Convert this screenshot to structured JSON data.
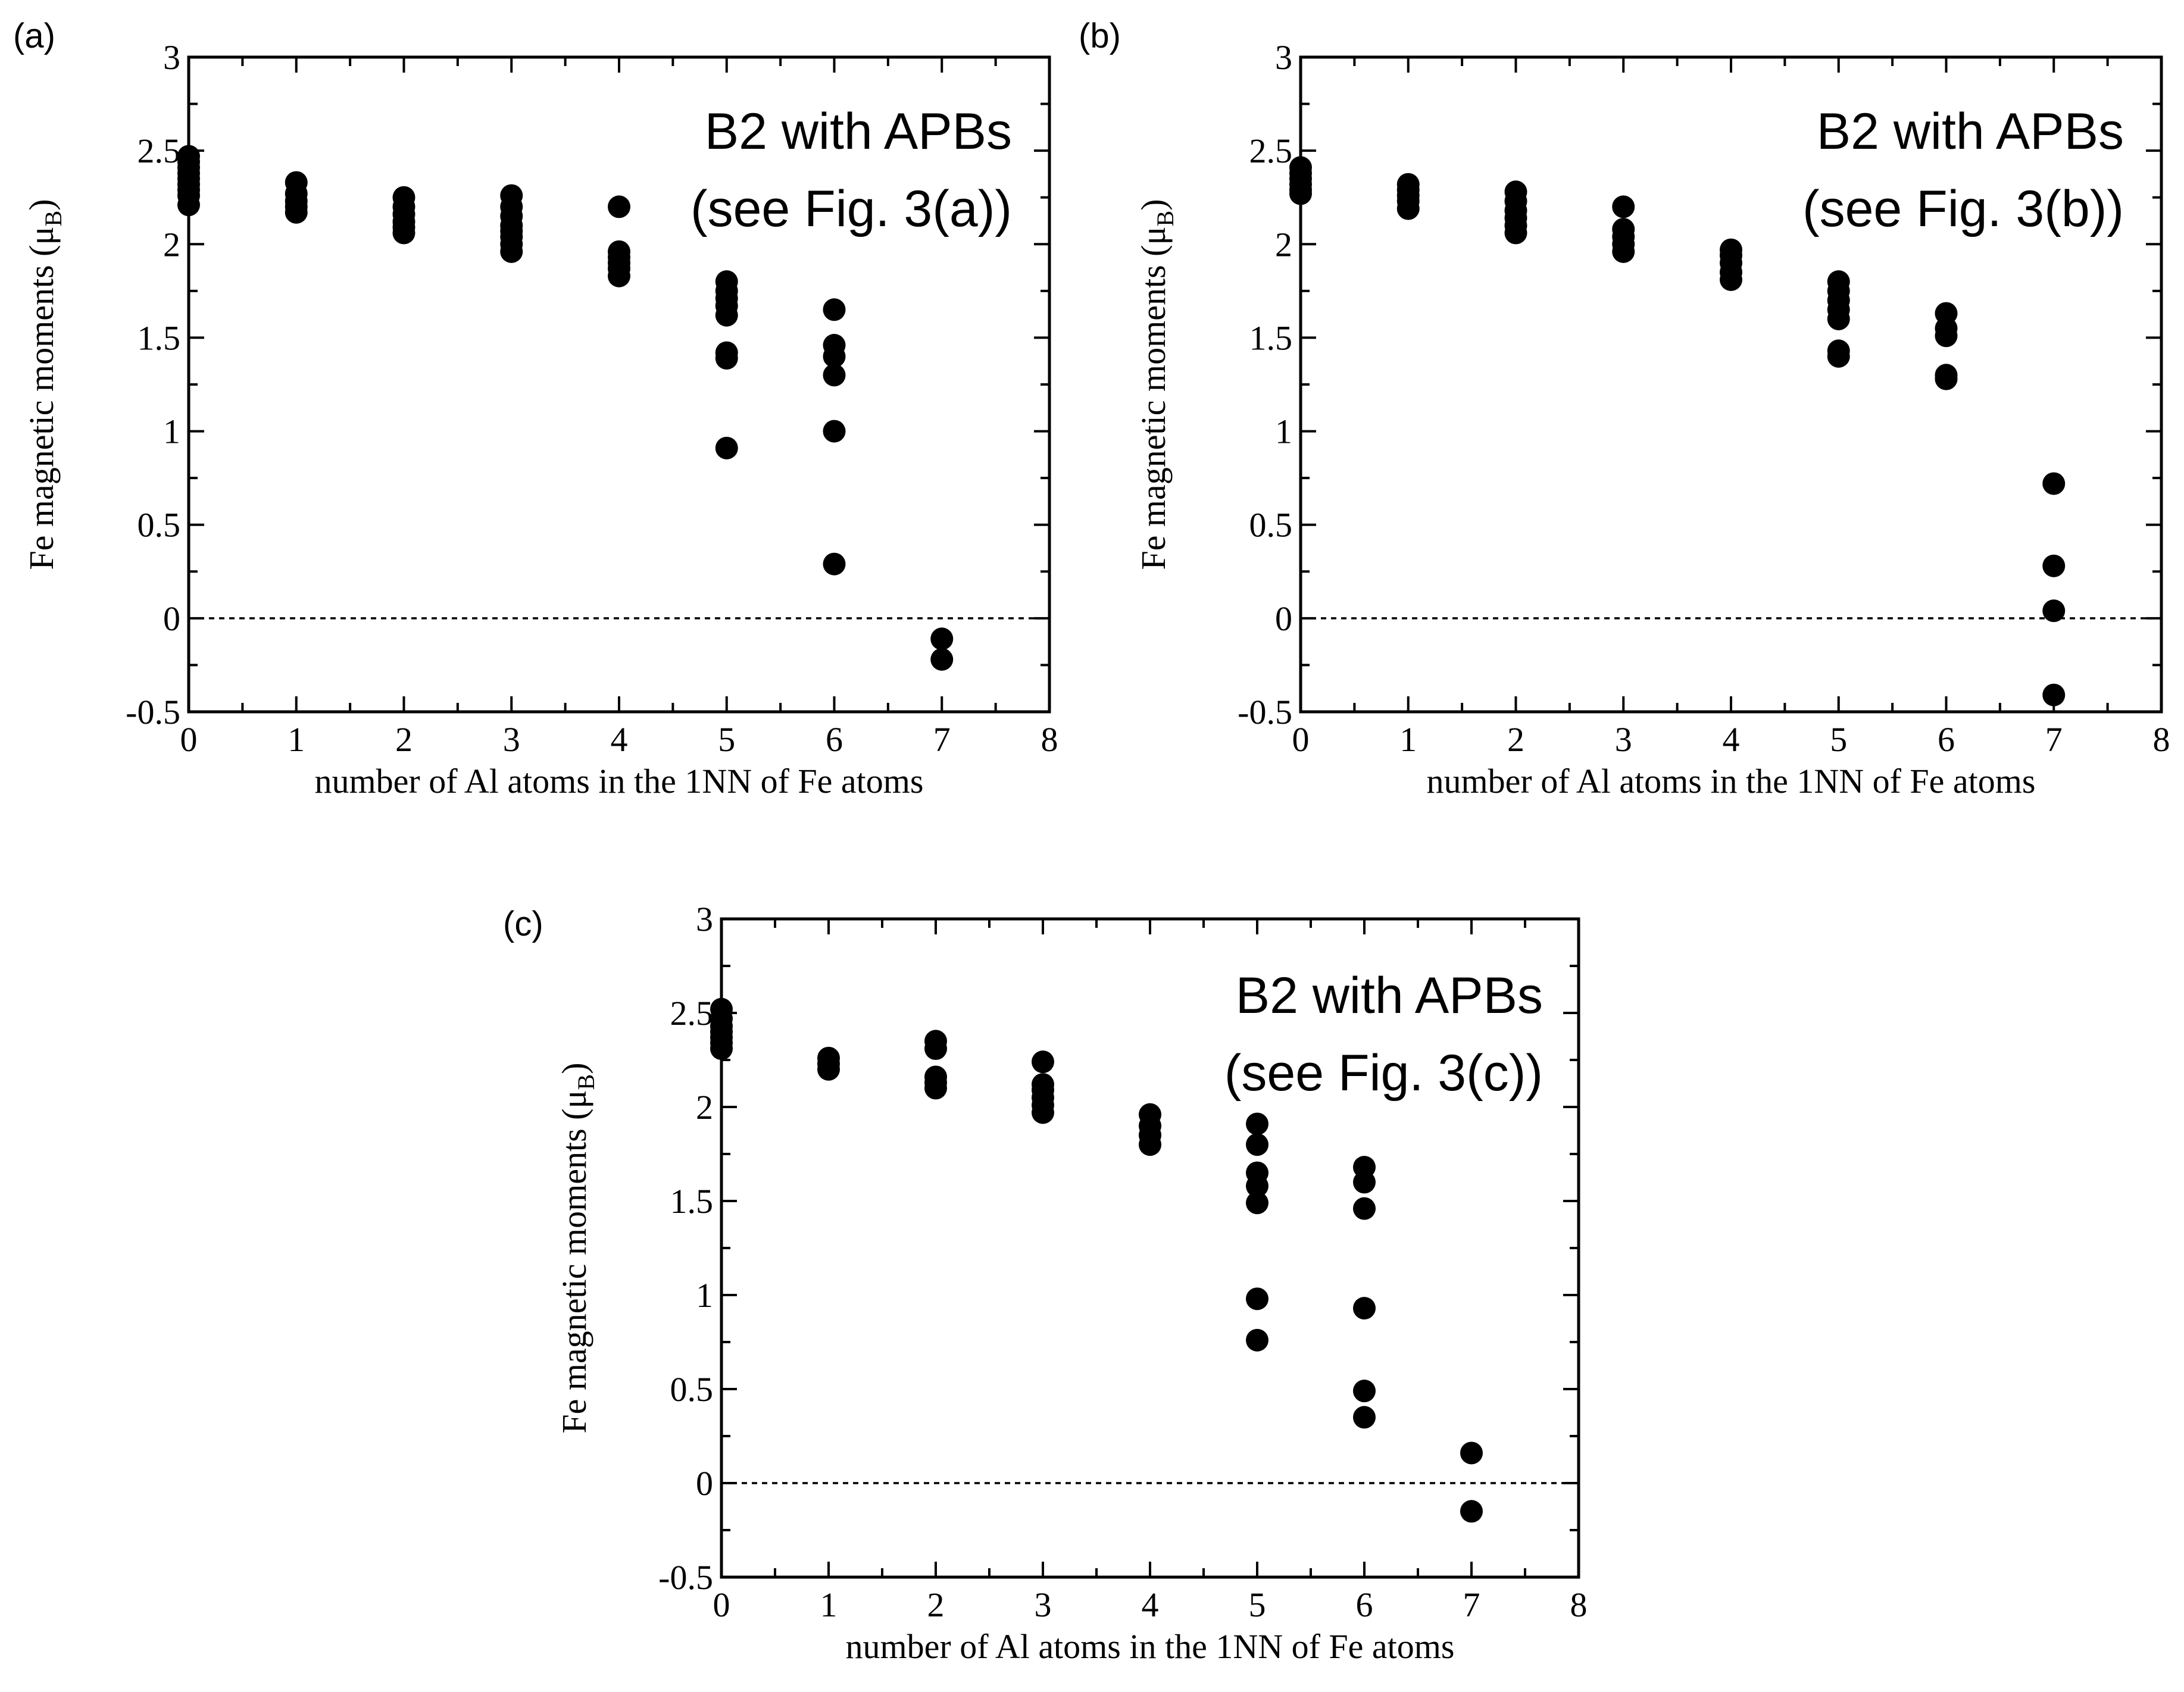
{
  "chart_data": [
    {
      "type": "scatter",
      "panel_label": "(a)",
      "annotation": [
        "B2 with APBs",
        "(see Fig. 3(a))"
      ],
      "xlabel": "number of Al atoms in the 1NN of Fe atoms",
      "ylabel": {
        "main": "Fe magnetic moments (μ",
        "sub": "B",
        "close": ")"
      },
      "xlim": [
        0,
        8
      ],
      "ylim": [
        -0.5,
        3
      ],
      "xticks": [
        "0",
        "1",
        "2",
        "3",
        "4",
        "5",
        "6",
        "7",
        "8"
      ],
      "yticks": [
        "-0.5",
        "0",
        "0.5",
        "1",
        "1.5",
        "2",
        "2.5",
        "3"
      ],
      "reference_line": 0,
      "points": [
        [
          0,
          2.47
        ],
        [
          0,
          2.44
        ],
        [
          0,
          2.41
        ],
        [
          0,
          2.38
        ],
        [
          0,
          2.35
        ],
        [
          0,
          2.32
        ],
        [
          0,
          2.29
        ],
        [
          0,
          2.26
        ],
        [
          0,
          2.21
        ],
        [
          1,
          2.33
        ],
        [
          1,
          2.27
        ],
        [
          1,
          2.23
        ],
        [
          1,
          2.2
        ],
        [
          1,
          2.17
        ],
        [
          2,
          2.25
        ],
        [
          2,
          2.2
        ],
        [
          2,
          2.16
        ],
        [
          2,
          2.12
        ],
        [
          2,
          2.09
        ],
        [
          2,
          2.06
        ],
        [
          3,
          2.26
        ],
        [
          3,
          2.2
        ],
        [
          3,
          2.15
        ],
        [
          3,
          2.1
        ],
        [
          3,
          2.07
        ],
        [
          3,
          2.04
        ],
        [
          3,
          2.0
        ],
        [
          3,
          1.96
        ],
        [
          4,
          2.2
        ],
        [
          4,
          1.96
        ],
        [
          4,
          1.93
        ],
        [
          4,
          1.9
        ],
        [
          4,
          1.87
        ],
        [
          4,
          1.83
        ],
        [
          5,
          1.8
        ],
        [
          5,
          1.75
        ],
        [
          5,
          1.71
        ],
        [
          5,
          1.67
        ],
        [
          5,
          1.62
        ],
        [
          5,
          1.42
        ],
        [
          5,
          1.39
        ],
        [
          5,
          0.91
        ],
        [
          6,
          1.65
        ],
        [
          6,
          1.46
        ],
        [
          6,
          1.4
        ],
        [
          6,
          1.3
        ],
        [
          6,
          1.0
        ],
        [
          6,
          0.29
        ],
        [
          7,
          -0.11
        ],
        [
          7,
          -0.22
        ]
      ]
    },
    {
      "type": "scatter",
      "panel_label": "(b)",
      "annotation": [
        "B2 with APBs",
        "(see Fig. 3(b))"
      ],
      "xlabel": "number of Al atoms in the 1NN of Fe atoms",
      "ylabel": {
        "main": "Fe magnetic moments (μ",
        "sub": "B",
        "close": ")"
      },
      "xlim": [
        0,
        8
      ],
      "ylim": [
        -0.5,
        3
      ],
      "xticks": [
        "0",
        "1",
        "2",
        "3",
        "4",
        "5",
        "6",
        "7",
        "8"
      ],
      "yticks": [
        "-0.5",
        "0",
        "0.5",
        "1",
        "1.5",
        "2",
        "2.5",
        "3"
      ],
      "reference_line": 0,
      "points": [
        [
          0,
          2.41
        ],
        [
          0,
          2.38
        ],
        [
          0,
          2.35
        ],
        [
          0,
          2.32
        ],
        [
          0,
          2.29
        ],
        [
          0,
          2.27
        ],
        [
          1,
          2.32
        ],
        [
          1,
          2.29
        ],
        [
          1,
          2.26
        ],
        [
          1,
          2.23
        ],
        [
          1,
          2.19
        ],
        [
          2,
          2.28
        ],
        [
          2,
          2.23
        ],
        [
          2,
          2.18
        ],
        [
          2,
          2.14
        ],
        [
          2,
          2.1
        ],
        [
          2,
          2.06
        ],
        [
          3,
          2.2
        ],
        [
          3,
          2.08
        ],
        [
          3,
          2.04
        ],
        [
          3,
          2.0
        ],
        [
          3,
          1.96
        ],
        [
          4,
          1.97
        ],
        [
          4,
          1.94
        ],
        [
          4,
          1.9
        ],
        [
          4,
          1.85
        ],
        [
          4,
          1.81
        ],
        [
          5,
          1.8
        ],
        [
          5,
          1.75
        ],
        [
          5,
          1.7
        ],
        [
          5,
          1.65
        ],
        [
          5,
          1.6
        ],
        [
          5,
          1.43
        ],
        [
          5,
          1.4
        ],
        [
          6,
          1.63
        ],
        [
          6,
          1.55
        ],
        [
          6,
          1.51
        ],
        [
          6,
          1.3
        ],
        [
          6,
          1.28
        ],
        [
          7,
          0.72
        ],
        [
          7,
          0.28
        ],
        [
          7,
          0.04
        ],
        [
          7,
          -0.41
        ]
      ]
    },
    {
      "type": "scatter",
      "panel_label": "(c)",
      "annotation": [
        "B2 with APBs",
        "(see Fig. 3(c))"
      ],
      "xlabel": "number of Al atoms in the 1NN of Fe atoms",
      "ylabel": {
        "main": "Fe magnetic moments (μ",
        "sub": "B",
        "close": ")"
      },
      "xlim": [
        0,
        8
      ],
      "ylim": [
        -0.5,
        3
      ],
      "xticks": [
        "0",
        "1",
        "2",
        "3",
        "4",
        "5",
        "6",
        "7",
        "8"
      ],
      "yticks": [
        "-0.5",
        "0",
        "0.5",
        "1",
        "1.5",
        "2",
        "2.5",
        "3"
      ],
      "reference_line": 0,
      "points": [
        [
          0,
          2.52
        ],
        [
          0,
          2.47
        ],
        [
          0,
          2.43
        ],
        [
          0,
          2.4
        ],
        [
          0,
          2.37
        ],
        [
          0,
          2.34
        ],
        [
          0,
          2.31
        ],
        [
          1,
          2.26
        ],
        [
          1,
          2.23
        ],
        [
          1,
          2.2
        ],
        [
          2,
          2.35
        ],
        [
          2,
          2.31
        ],
        [
          2,
          2.16
        ],
        [
          2,
          2.13
        ],
        [
          2,
          2.1
        ],
        [
          3,
          2.24
        ],
        [
          3,
          2.12
        ],
        [
          3,
          2.09
        ],
        [
          3,
          2.05
        ],
        [
          3,
          2.01
        ],
        [
          3,
          1.97
        ],
        [
          4,
          1.96
        ],
        [
          4,
          1.9
        ],
        [
          4,
          1.85
        ],
        [
          4,
          1.8
        ],
        [
          5,
          1.91
        ],
        [
          5,
          1.8
        ],
        [
          5,
          1.65
        ],
        [
          5,
          1.58
        ],
        [
          5,
          1.49
        ],
        [
          5,
          0.98
        ],
        [
          5,
          0.76
        ],
        [
          6,
          1.68
        ],
        [
          6,
          1.6
        ],
        [
          6,
          1.46
        ],
        [
          6,
          0.93
        ],
        [
          6,
          0.49
        ],
        [
          6,
          0.35
        ],
        [
          7,
          0.16
        ],
        [
          7,
          -0.15
        ]
      ]
    }
  ]
}
